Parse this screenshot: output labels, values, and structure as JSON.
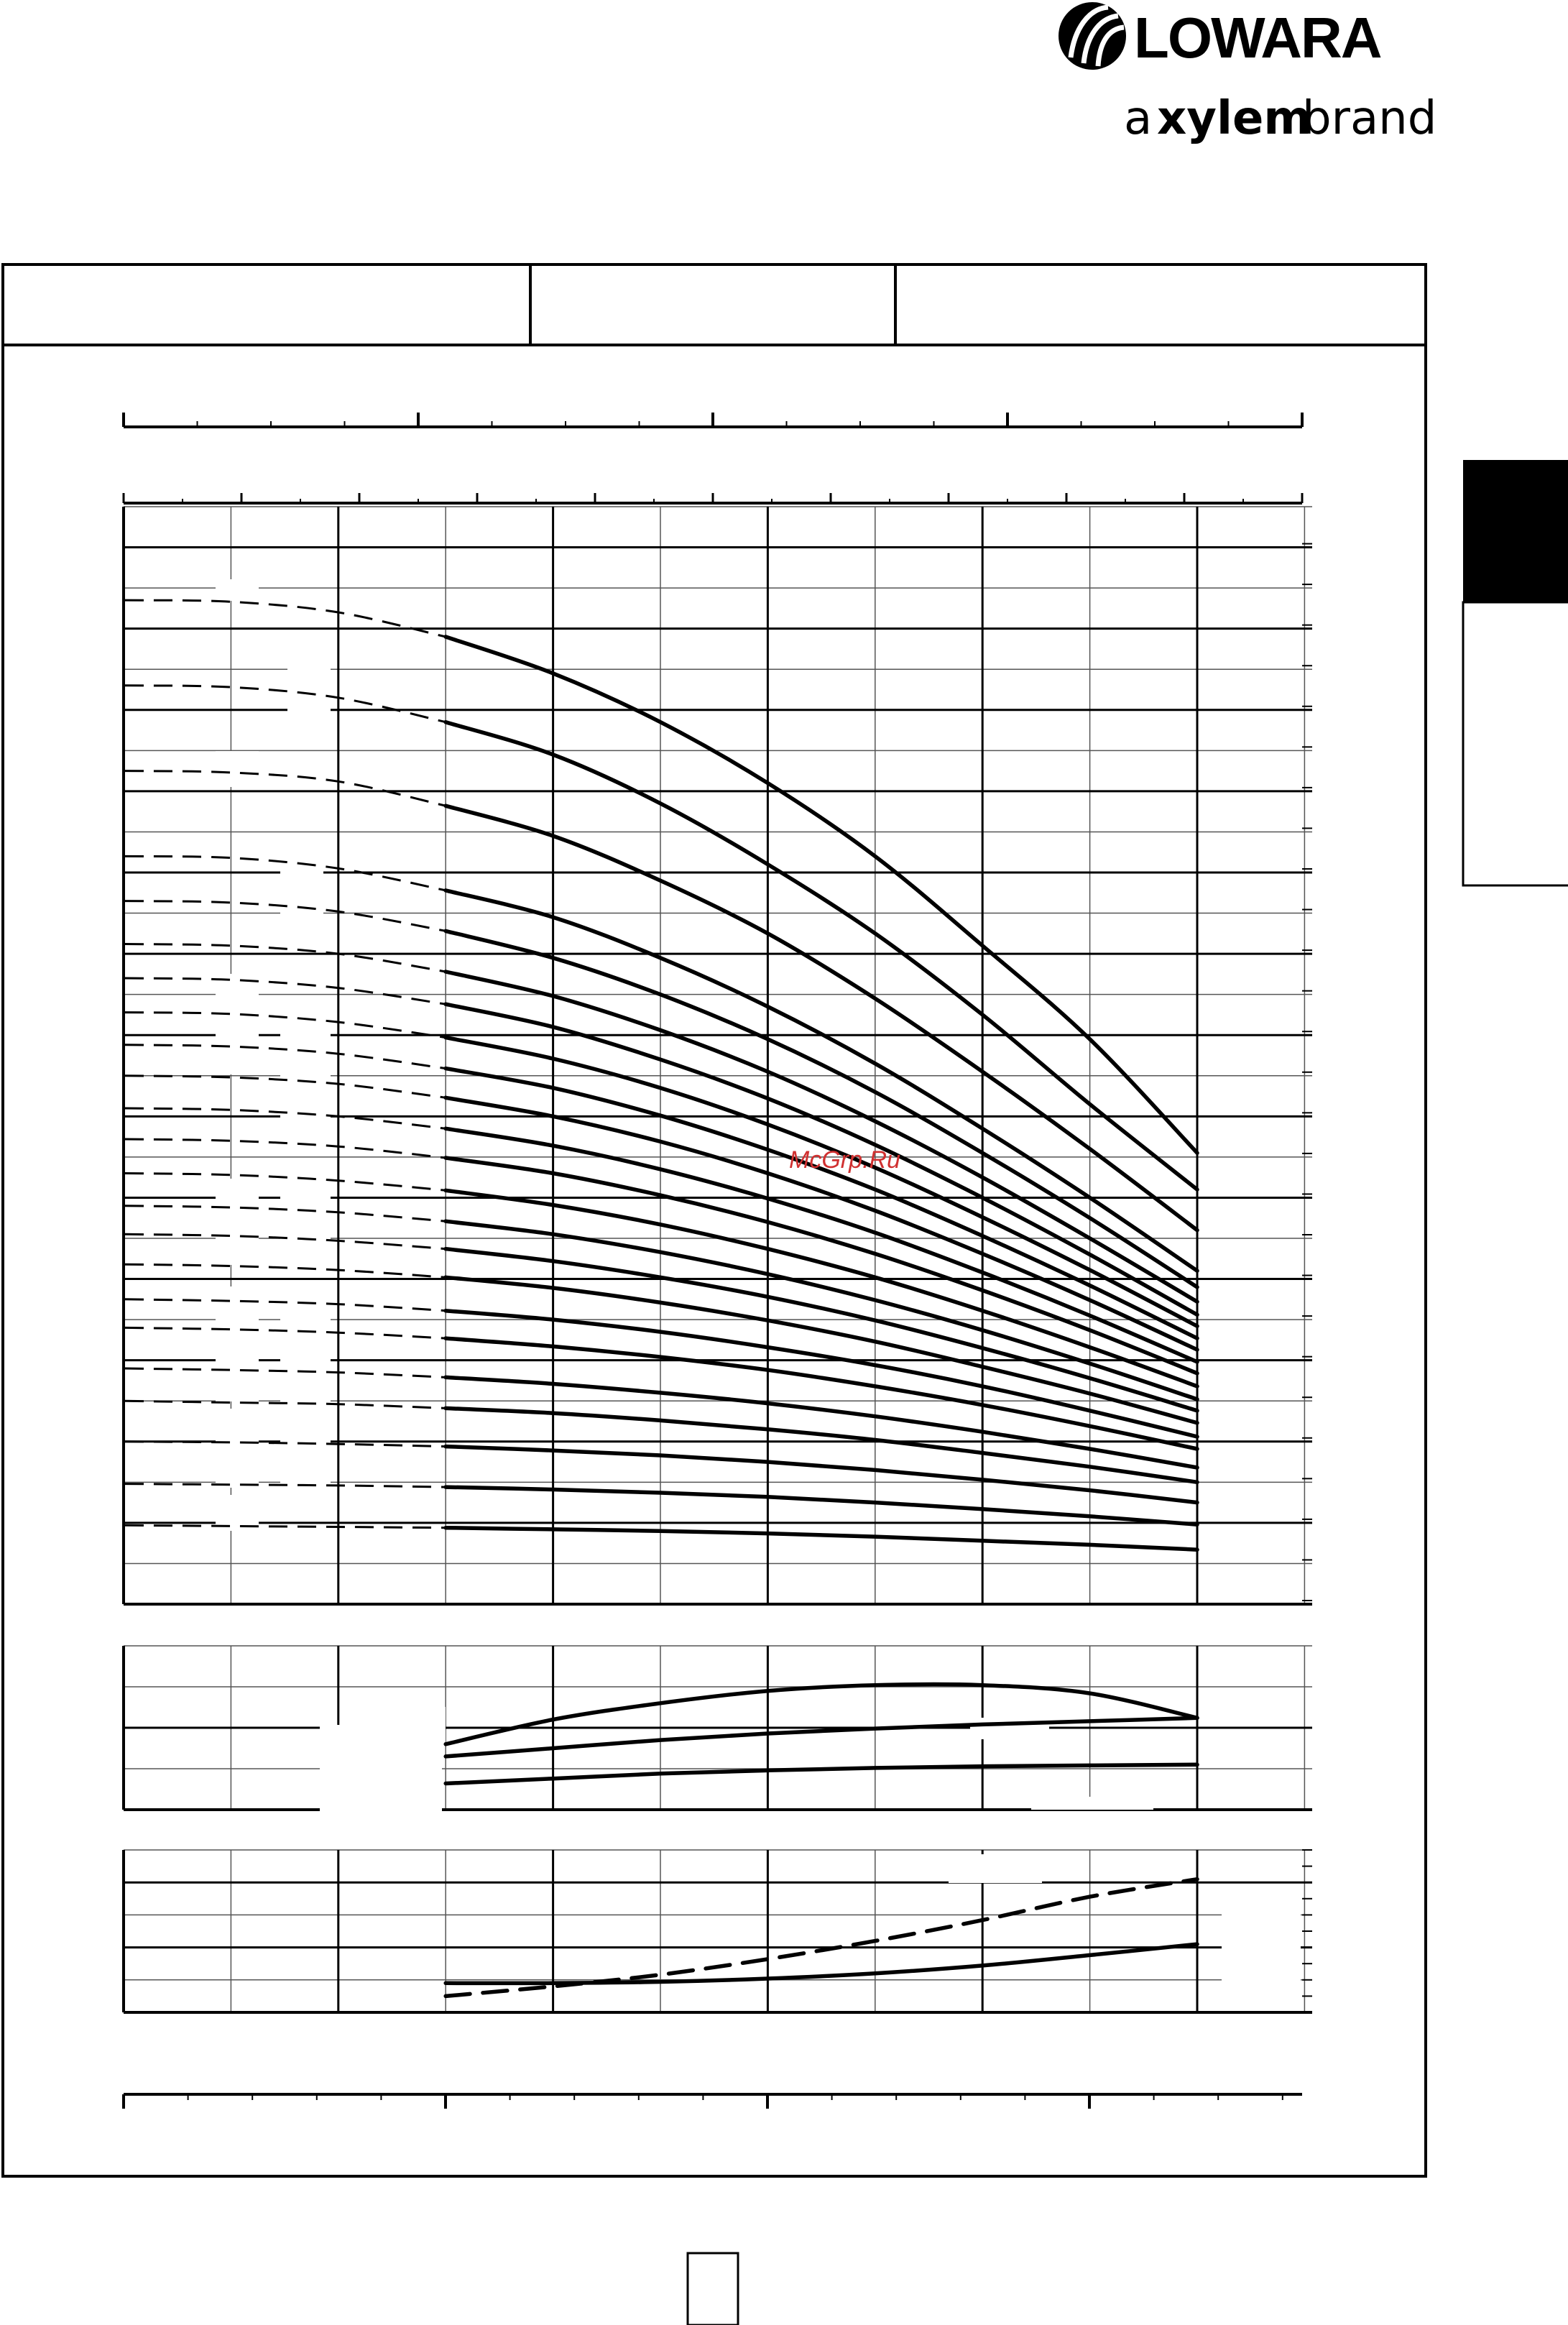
{
  "brand": {
    "name": "LOWARA",
    "tagline_a": "a",
    "tagline_brand_word": "xylem",
    "tagline_rest": "brand"
  },
  "watermark": "McGrp.Ru",
  "colors": {
    "ink": "#000000",
    "grid_minor": "#555555",
    "watermark": "#d03030"
  },
  "chart_data": [
    {
      "type": "line",
      "panel": "head",
      "note": "Pump head curves, 23 stage variants; each curve: dashed segment at low flow, solid in operating range. Axis scales and labels are not printed in the image; values given in chart grid units.",
      "x_range": [
        0,
        11
      ],
      "y_range": [
        0,
        13.5
      ],
      "dashed_range": [
        0,
        3
      ],
      "solid_range": [
        3,
        10
      ],
      "curve_x": [
        0,
        1,
        2,
        3,
        4,
        5,
        6,
        7,
        8,
        9,
        10
      ],
      "series": [
        {
          "values": [
            12.35,
            12.33,
            12.2,
            11.9,
            11.45,
            10.85,
            10.1,
            9.2,
            8.1,
            6.95,
            5.55
          ]
        },
        {
          "values": [
            11.3,
            11.28,
            11.15,
            10.85,
            10.45,
            9.85,
            9.1,
            8.25,
            7.25,
            6.15,
            5.1
          ]
        },
        {
          "values": [
            10.25,
            10.23,
            10.12,
            9.82,
            9.45,
            8.9,
            8.25,
            7.45,
            6.55,
            5.6,
            4.6
          ]
        },
        {
          "values": [
            9.2,
            9.18,
            9.05,
            8.78,
            8.45,
            7.95,
            7.35,
            6.65,
            5.85,
            5.0,
            4.1
          ]
        },
        {
          "values": [
            8.65,
            8.63,
            8.52,
            8.28,
            7.95,
            7.5,
            6.95,
            6.3,
            5.55,
            4.75,
            3.9
          ]
        },
        {
          "values": [
            8.12,
            8.1,
            8.0,
            7.78,
            7.48,
            7.06,
            6.55,
            5.94,
            5.25,
            4.5,
            3.72
          ]
        },
        {
          "values": [
            7.7,
            7.68,
            7.58,
            7.38,
            7.1,
            6.7,
            6.22,
            5.65,
            5.0,
            4.3,
            3.56
          ]
        },
        {
          "values": [
            7.28,
            7.26,
            7.16,
            6.97,
            6.71,
            6.35,
            5.9,
            5.37,
            4.76,
            4.11,
            3.42
          ]
        },
        {
          "values": [
            6.88,
            6.86,
            6.77,
            6.59,
            6.35,
            6.01,
            5.59,
            5.1,
            4.53,
            3.92,
            3.27
          ]
        },
        {
          "values": [
            6.5,
            6.48,
            6.4,
            6.23,
            6.0,
            5.69,
            5.3,
            4.84,
            4.31,
            3.74,
            3.13
          ]
        },
        {
          "values": [
            6.1,
            6.08,
            6.0,
            5.85,
            5.64,
            5.35,
            4.99,
            4.57,
            4.08,
            3.55,
            2.98
          ]
        },
        {
          "values": [
            5.72,
            5.7,
            5.63,
            5.49,
            5.3,
            5.03,
            4.7,
            4.31,
            3.86,
            3.37,
            2.84
          ]
        },
        {
          "values": [
            5.3,
            5.28,
            5.21,
            5.09,
            4.91,
            4.67,
            4.37,
            4.02,
            3.61,
            3.16,
            2.68
          ]
        },
        {
          "values": [
            4.9,
            4.88,
            4.82,
            4.71,
            4.55,
            4.33,
            4.06,
            3.74,
            3.37,
            2.96,
            2.52
          ]
        },
        {
          "values": [
            4.55,
            4.53,
            4.47,
            4.37,
            4.22,
            4.02,
            3.78,
            3.49,
            3.15,
            2.78,
            2.38
          ]
        },
        {
          "values": [
            4.18,
            4.16,
            4.11,
            4.02,
            3.89,
            3.71,
            3.49,
            3.23,
            2.92,
            2.59,
            2.23
          ]
        },
        {
          "values": [
            3.75,
            3.73,
            3.69,
            3.61,
            3.5,
            3.35,
            3.16,
            2.94,
            2.68,
            2.38,
            2.06
          ]
        },
        {
          "values": [
            3.4,
            3.38,
            3.34,
            3.27,
            3.17,
            3.04,
            2.88,
            2.68,
            2.45,
            2.19,
            1.91
          ]
        },
        {
          "values": [
            2.9,
            2.88,
            2.85,
            2.79,
            2.71,
            2.6,
            2.47,
            2.31,
            2.12,
            1.91,
            1.68
          ]
        },
        {
          "values": [
            2.5,
            2.48,
            2.46,
            2.41,
            2.35,
            2.26,
            2.15,
            2.02,
            1.86,
            1.69,
            1.5
          ]
        },
        {
          "values": [
            2.0,
            1.99,
            1.97,
            1.94,
            1.89,
            1.83,
            1.75,
            1.65,
            1.53,
            1.4,
            1.25
          ]
        },
        {
          "values": [
            1.48,
            1.47,
            1.46,
            1.44,
            1.41,
            1.37,
            1.32,
            1.25,
            1.17,
            1.08,
            0.98
          ]
        },
        {
          "values": [
            0.97,
            0.96,
            0.95,
            0.94,
            0.92,
            0.9,
            0.87,
            0.83,
            0.78,
            0.73,
            0.67
          ]
        }
      ]
    },
    {
      "type": "line",
      "panel": "efficiency",
      "x_range": [
        0,
        11
      ],
      "y_range": [
        0,
        2
      ],
      "x": [
        3,
        4,
        5,
        6,
        7,
        8,
        9,
        10
      ],
      "series": [
        {
          "values": [
            0.8,
            1.1,
            1.3,
            1.45,
            1.52,
            1.52,
            1.42,
            1.12
          ]
        },
        {
          "values": [
            0.65,
            0.75,
            0.85,
            0.93,
            0.99,
            1.04,
            1.08,
            1.12
          ]
        },
        {
          "values": [
            0.32,
            0.38,
            0.44,
            0.48,
            0.51,
            0.53,
            0.54,
            0.55
          ]
        }
      ]
    },
    {
      "type": "line",
      "panel": "npsh_power",
      "x_range": [
        0,
        11
      ],
      "y_range": [
        0,
        2.5
      ],
      "x": [
        3,
        4,
        5,
        6,
        7,
        8,
        9,
        10
      ],
      "series": [
        {
          "style": "solid",
          "values": [
            0.45,
            0.45,
            0.47,
            0.52,
            0.6,
            0.72,
            0.88,
            1.05
          ]
        },
        {
          "style": "dashed",
          "values": [
            0.25,
            0.4,
            0.58,
            0.82,
            1.1,
            1.42,
            1.78,
            2.05
          ]
        }
      ]
    }
  ]
}
